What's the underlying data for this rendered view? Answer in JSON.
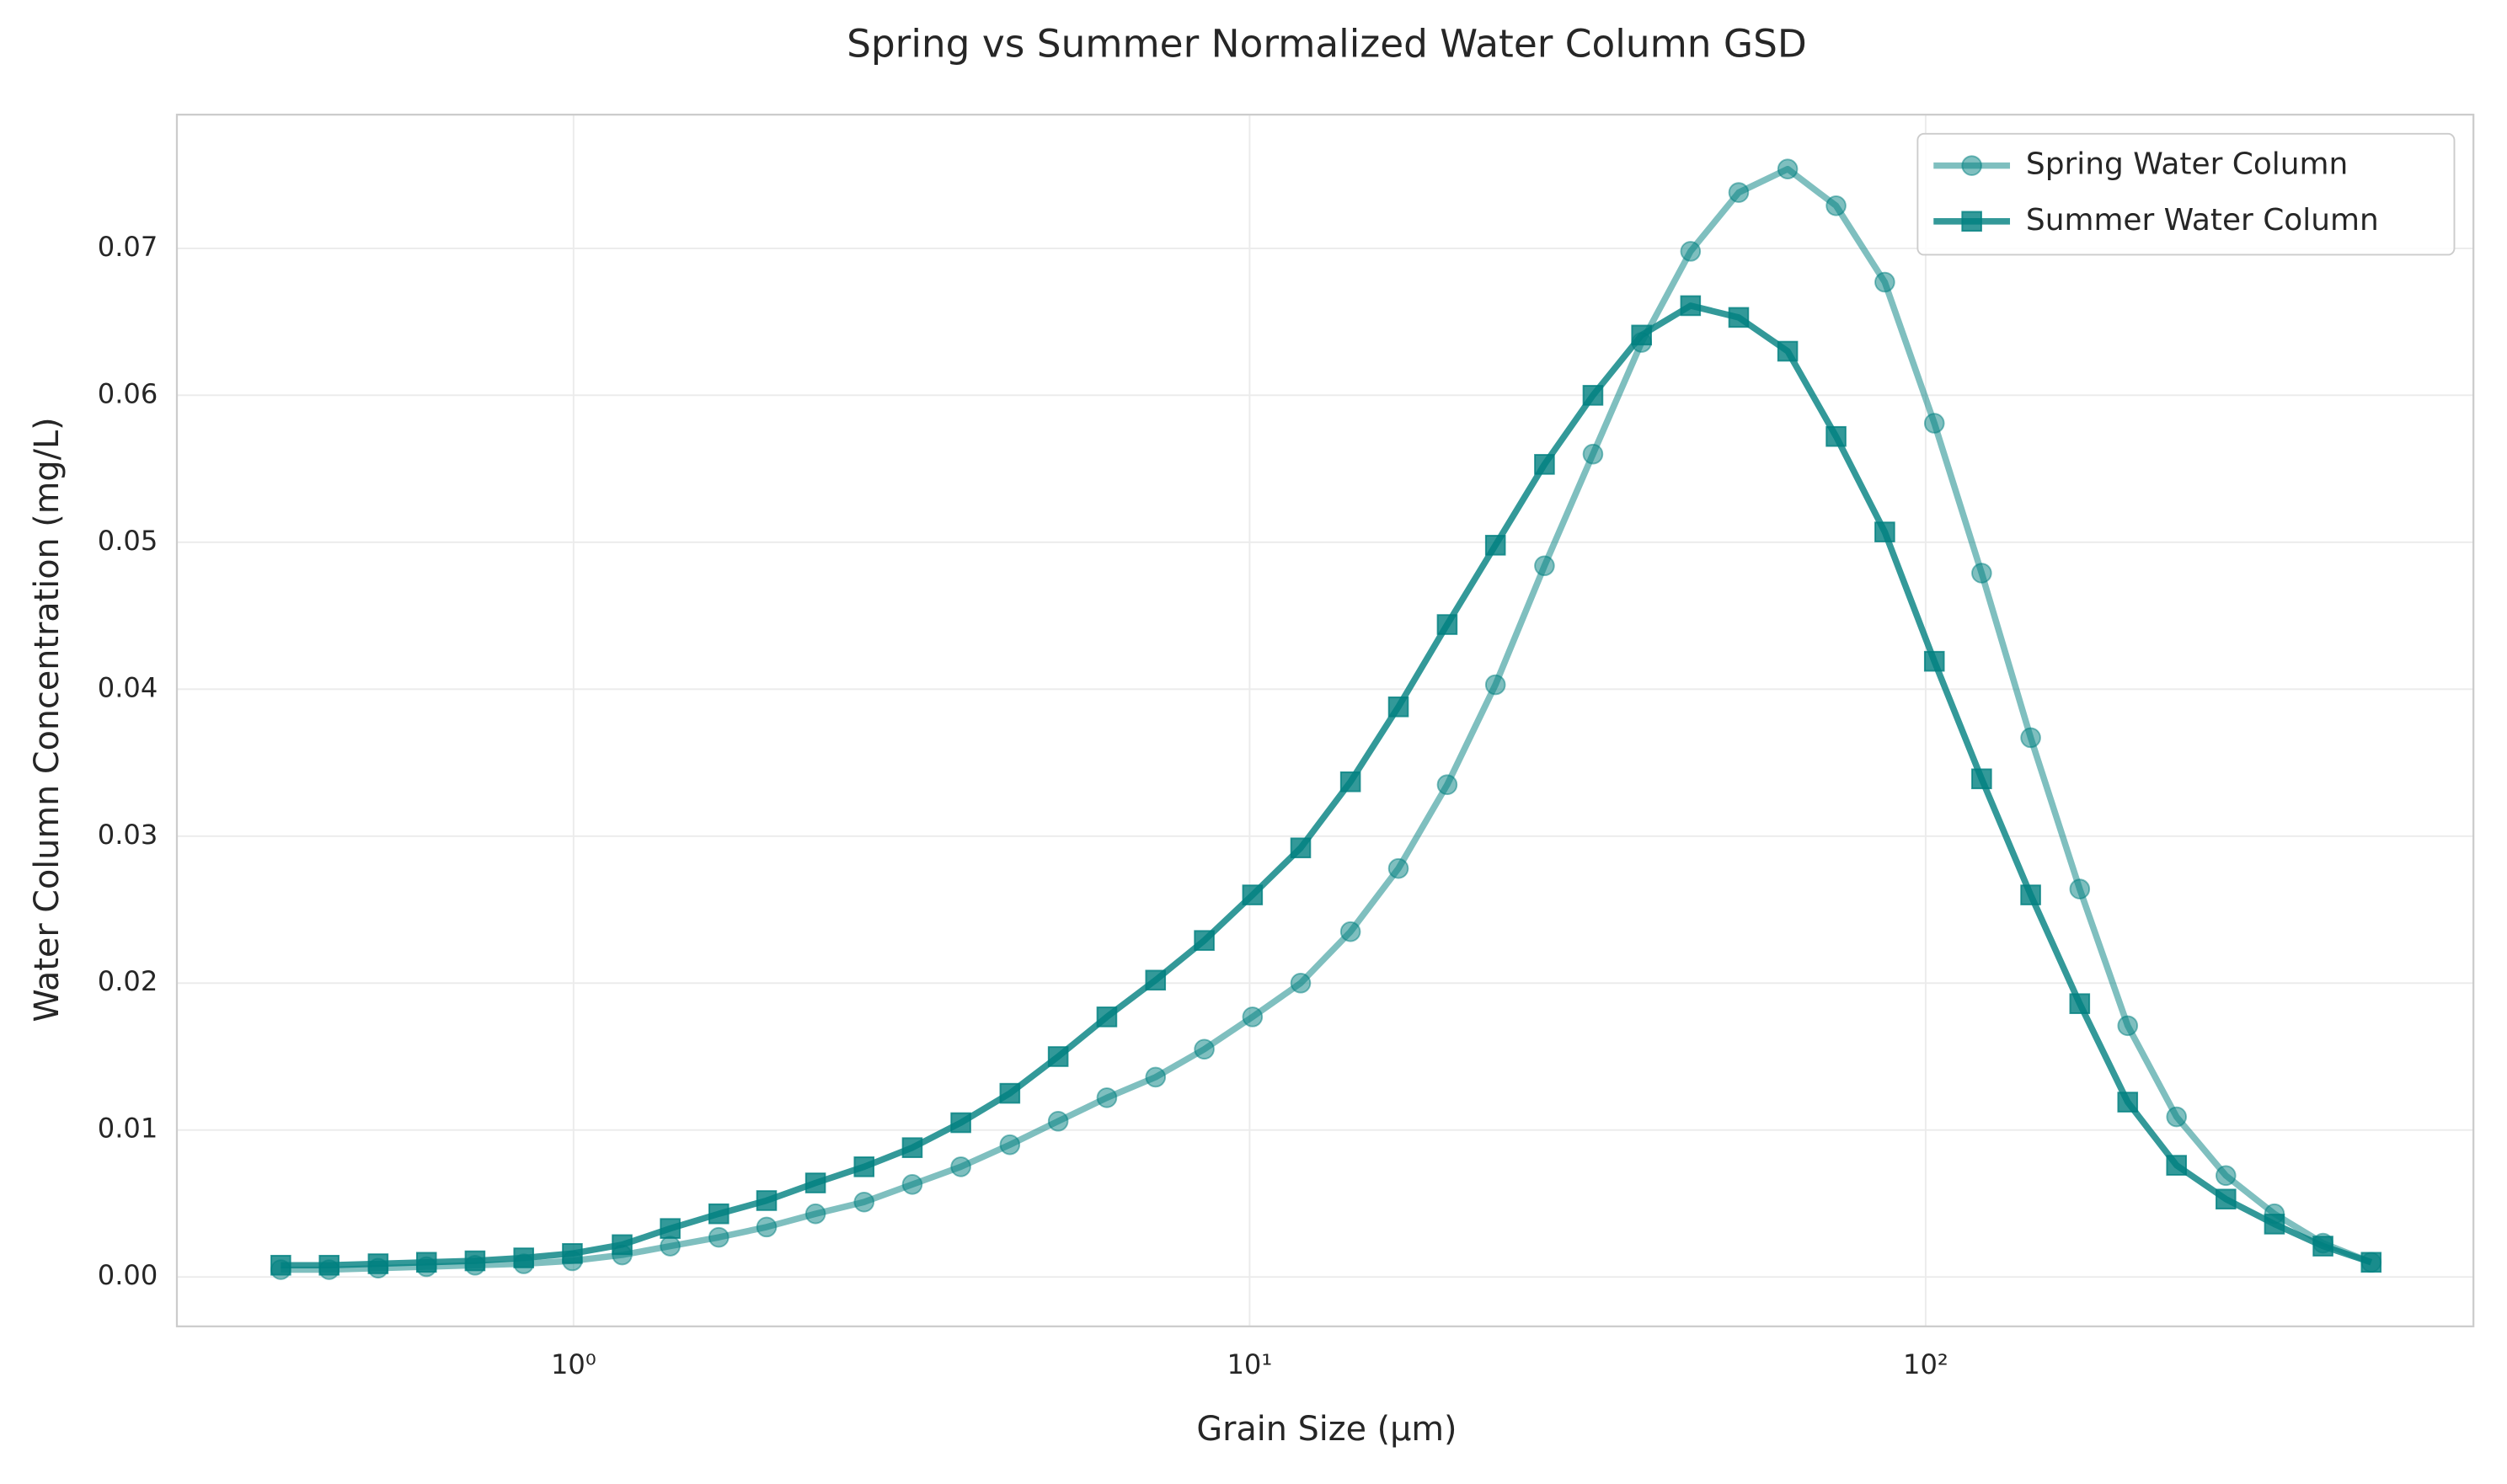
{
  "chart_data": {
    "type": "line",
    "title": "Spring vs Summer Normalized Water Column GSD",
    "xlabel": "Grain Size (µm)",
    "ylabel": "Water Column Concentration (mg/L)",
    "xscale": "log",
    "grid": true,
    "legend": "upper right",
    "x": [
      0.369,
      0.435,
      0.514,
      0.606,
      0.715,
      0.844,
      0.996,
      1.18,
      1.39,
      1.64,
      1.93,
      2.28,
      2.69,
      3.17,
      3.74,
      4.42,
      5.21,
      6.15,
      7.26,
      8.57,
      10.1,
      11.9,
      14.1,
      16.6,
      19.6,
      23.1,
      27.3,
      32.2,
      38.0,
      44.9,
      52.9,
      62.5,
      73.7,
      87.0,
      103,
      121,
      143,
      169,
      199,
      235,
      278,
      328,
      387,
      456
    ],
    "series": [
      {
        "name": "Spring Water Column",
        "color": "#008080",
        "opacity": 0.5,
        "marker": "circle",
        "values": [
          0.0005,
          0.0005,
          0.0006,
          0.0007,
          0.0008,
          0.0009,
          0.0011,
          0.0015,
          0.0021,
          0.0027,
          0.0034,
          0.0043,
          0.0051,
          0.0063,
          0.0075,
          0.009,
          0.0106,
          0.0122,
          0.0136,
          0.0155,
          0.0177,
          0.02,
          0.0235,
          0.0278,
          0.0335,
          0.0403,
          0.0484,
          0.056,
          0.0636,
          0.0698,
          0.0738,
          0.0754,
          0.0729,
          0.0677,
          0.0581,
          0.0479,
          0.0367,
          0.0264,
          0.0171,
          0.0109,
          0.0069,
          0.0043,
          0.0023,
          0.001
        ]
      },
      {
        "name": "Summer Water Column",
        "color": "#008080",
        "opacity": 0.8,
        "marker": "square",
        "values": [
          0.0008,
          0.0008,
          0.0009,
          0.001,
          0.0011,
          0.0013,
          0.0016,
          0.0022,
          0.0033,
          0.0043,
          0.0052,
          0.0064,
          0.0075,
          0.0088,
          0.0105,
          0.0125,
          0.015,
          0.0177,
          0.0202,
          0.0229,
          0.026,
          0.0292,
          0.0337,
          0.0388,
          0.0444,
          0.0498,
          0.0553,
          0.06,
          0.0641,
          0.0661,
          0.0653,
          0.063,
          0.0572,
          0.0507,
          0.0419,
          0.0339,
          0.026,
          0.0186,
          0.0119,
          0.0076,
          0.0053,
          0.0036,
          0.0021,
          0.001
        ]
      }
    ],
    "xlim": [
      0.259,
      646
    ],
    "ylim": [
      -0.00336,
      0.0791
    ],
    "xticks": [
      {
        "value": 1,
        "label": "10⁰"
      },
      {
        "value": 10,
        "label": "10¹"
      },
      {
        "value": 100,
        "label": "10²"
      }
    ],
    "yticks": [
      {
        "value": 0,
        "label": "0.00"
      },
      0.01,
      0.02,
      0.03,
      0.04,
      0.05,
      0.06,
      0.07
    ]
  }
}
